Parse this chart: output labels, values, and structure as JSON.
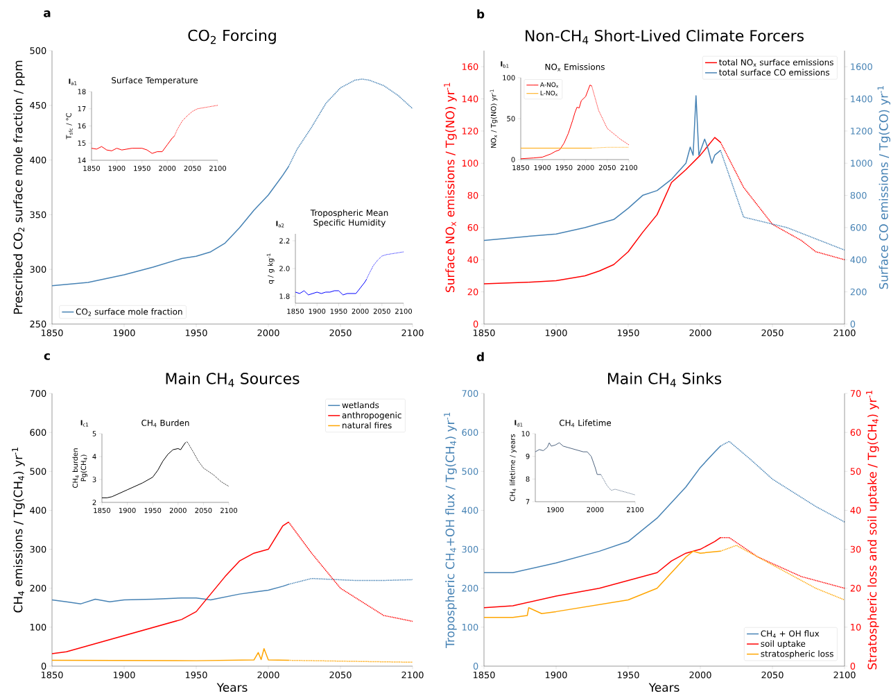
{
  "chart_data": [
    {
      "type": "line",
      "title": "CO$_{2}$ Forcing",
      "ylabel": "Prescribed CO$_{2}$ surface mole fraction / ppm",
      "xlim": [
        1850,
        2100
      ],
      "ylim": [
        250,
        500
      ],
      "xticks": [
        1850,
        1900,
        1950,
        2000,
        2050,
        2100
      ],
      "yticks": [
        250,
        300,
        350,
        400,
        450,
        500
      ],
      "legend": "bottom left",
      "annotations": [
        "**a**"
      ],
      "series": [
        {
          "name": "CO$_{2}$ surface mole fraction",
          "color": "#4682b4",
          "line_style": "solid",
          "x": [
            1850,
            1875,
            1900,
            1920,
            1930,
            1940,
            1950,
            1960,
            1970,
            1980,
            1990,
            2000,
            2010,
            2014
          ],
          "values": [
            285,
            288,
            295,
            302,
            306,
            310,
            312,
            316,
            324,
            338,
            354,
            368,
            386,
            394
          ]
        },
        {
          "color": "#4682b4",
          "line_style": "dotted",
          "x": [
            2014,
            2020,
            2030,
            2040,
            2050,
            2060,
            2065,
            2070,
            2080,
            2090,
            2100
          ],
          "values": [
            394,
            410,
            430,
            452,
            466,
            473,
            474,
            473,
            468,
            459,
            447
          ]
        }
      ]
    },
    {
      "type": "line",
      "title": "Surface Temperature",
      "ylabel": "T$_{sfc}$ / °C",
      "xlim": [
        1850,
        2100
      ],
      "ylim": [
        14,
        18
      ],
      "xticks": [
        1850,
        1900,
        1950,
        2000,
        2050,
        2100
      ],
      "yticks": [
        14,
        15,
        16,
        17,
        18
      ],
      "annotations": [
        "**I**$_{a1}$"
      ],
      "series": [
        {
          "color": "#ff0000",
          "line_style": "solid",
          "x": [
            1850,
            1860,
            1870,
            1880,
            1890,
            1900,
            1910,
            1920,
            1930,
            1940,
            1950,
            1960,
            1970,
            1980,
            1990,
            2000,
            2010,
            2014
          ],
          "values": [
            14.7,
            14.65,
            14.8,
            14.6,
            14.55,
            14.7,
            14.6,
            14.65,
            14.7,
            14.7,
            14.7,
            14.6,
            14.4,
            14.5,
            14.5,
            14.9,
            15.3,
            15.4
          ]
        },
        {
          "color": "#ff0000",
          "line_style": "dotted",
          "x": [
            2014,
            2020,
            2030,
            2040,
            2050,
            2060,
            2080,
            2100
          ],
          "values": [
            15.4,
            15.8,
            16.3,
            16.6,
            16.85,
            17.0,
            17.1,
            17.2
          ]
        }
      ]
    },
    {
      "type": "line",
      "title": "Tropospheric Mean Specific Humidity",
      "ylabel": "q / g kg$^{-1}$",
      "xlim": [
        1850,
        2100
      ],
      "ylim": [
        1.75,
        2.25
      ],
      "xticks": [
        1850,
        1900,
        1950,
        2000,
        2050,
        2100
      ],
      "yticks": [
        {
          "value": 1.8,
          "label": "1.8"
        },
        {
          "value": 2.0,
          "label": "2.0"
        },
        {
          "value": 2.2,
          "label": "2.2"
        }
      ],
      "annotations": [
        "**I**$_{a2}$"
      ],
      "series": [
        {
          "color": "#0000ff",
          "line_style": "solid",
          "x": [
            1850,
            1860,
            1870,
            1880,
            1890,
            1900,
            1910,
            1920,
            1930,
            1940,
            1950,
            1960,
            1970,
            1980,
            1990,
            2000,
            2010,
            2014
          ],
          "values": [
            1.83,
            1.82,
            1.84,
            1.81,
            1.82,
            1.83,
            1.82,
            1.83,
            1.83,
            1.84,
            1.84,
            1.81,
            1.82,
            1.82,
            1.82,
            1.86,
            1.9,
            1.92
          ]
        },
        {
          "color": "#0000ff",
          "line_style": "dotted",
          "x": [
            2014,
            2020,
            2030,
            2040,
            2050,
            2060,
            2080,
            2100
          ],
          "values": [
            1.92,
            1.96,
            2.02,
            2.06,
            2.09,
            2.1,
            2.11,
            2.12
          ]
        }
      ]
    },
    {
      "type": "line",
      "title": "Non-CH$_{4}$ Short-Lived Climate Forcers",
      "ylabel": "Surface NO$_{x}$ emissions / Tg(NO) yr$^{-1}$",
      "y2label": "Surface CO emissions / Tg(CO) yr$^{-1}$",
      "xlim": [
        1850,
        2100
      ],
      "ylim": [
        0,
        170
      ],
      "y2lim": [
        0,
        1700
      ],
      "xticks": [
        1850,
        1900,
        1950,
        2000,
        2050,
        2100
      ],
      "yticks": [
        0,
        20,
        40,
        60,
        80,
        100,
        120,
        140,
        160
      ],
      "y2ticks": [
        0,
        200,
        400,
        600,
        800,
        1000,
        1200,
        1400,
        1600
      ],
      "legend": "top right",
      "annotations": [
        "**b**"
      ],
      "series": [
        {
          "name": "total NO$_{x}$ surface emissions",
          "color": "#ff0000",
          "line_style": "solid",
          "x": [
            1850,
            1880,
            1900,
            1920,
            1930,
            1940,
            1950,
            1960,
            1970,
            1980,
            1990,
            2000,
            2010,
            2014
          ],
          "values": [
            25,
            26,
            27,
            30,
            33,
            37,
            45,
            57,
            68,
            88,
            96,
            105,
            116,
            113
          ]
        },
        {
          "color": "#ff0000",
          "line_style": "dotted",
          "x": [
            2014,
            2030,
            2050,
            2070,
            2080,
            2100
          ],
          "values": [
            113,
            85,
            62,
            52,
            45,
            40
          ]
        },
        {
          "name": "total surface CO emissions",
          "color": "#4682b4",
          "line_style": "solid",
          "axis": "y2",
          "x": [
            1850,
            1880,
            1900,
            1920,
            1940,
            1950,
            1960,
            1970,
            1980,
            1990,
            1993,
            1995,
            1997,
            1999,
            2003,
            2005,
            2008,
            2010,
            2014
          ],
          "values": [
            520,
            545,
            560,
            600,
            650,
            720,
            800,
            830,
            900,
            1000,
            1100,
            1050,
            1420,
            1050,
            1150,
            1100,
            1000,
            1050,
            1080
          ]
        },
        {
          "color": "#4682b4",
          "line_style": "dotted",
          "axis": "y2",
          "x": [
            2014,
            2030,
            2060,
            2100
          ],
          "values": [
            1080,
            665,
            600,
            460
          ]
        }
      ]
    },
    {
      "type": "line",
      "title": "NO$_{x}$ Emissions",
      "ylabel": "NO$_{x}$ / Tg(NO) yr$^{-1}$",
      "xlim": [
        1850,
        2100
      ],
      "ylim": [
        0,
        100
      ],
      "xticks": [
        1850,
        1900,
        1950,
        2000,
        2050,
        2100
      ],
      "yticks": [
        0,
        50,
        100
      ],
      "legend": "top left",
      "annotations": [
        "**I**$_{b1}$"
      ],
      "series": [
        {
          "name": "A-NO$_{x}$",
          "color": "#ff0000",
          "line_style": "solid",
          "x": [
            1850,
            1880,
            1900,
            1920,
            1930,
            1940,
            1950,
            1960,
            1970,
            1975,
            1980,
            1985,
            1990,
            2000,
            2005,
            2010,
            2014
          ],
          "values": [
            1,
            2,
            3,
            7,
            10,
            12,
            20,
            32,
            48,
            57,
            64,
            63,
            72,
            77,
            84,
            91,
            90
          ]
        },
        {
          "color": "#ff0000",
          "line_style": "dotted",
          "x": [
            2014,
            2030,
            2050,
            2080,
            2100
          ],
          "values": [
            90,
            60,
            38,
            25,
            18
          ]
        },
        {
          "name": "L-NO$_{x}$",
          "color": "#ffa500",
          "line_style": "solid",
          "x": [
            1850,
            1950,
            2014
          ],
          "values": [
            14,
            14,
            14
          ]
        },
        {
          "color": "#ffa500",
          "line_style": "dotted",
          "x": [
            2014,
            2050,
            2100
          ],
          "values": [
            14,
            15,
            15
          ]
        }
      ]
    },
    {
      "type": "line",
      "title": "Main CH$_{4}$ Sources",
      "ylabel": "CH$_{4}$ emissions / Tg(CH$_{4}$) yr$^{-1}$",
      "xlabel": "Years",
      "xlim": [
        1850,
        2100
      ],
      "ylim": [
        0,
        700
      ],
      "xticks": [
        1850,
        1900,
        1950,
        2000,
        2050,
        2100
      ],
      "yticks": [
        0,
        100,
        200,
        300,
        400,
        500,
        600,
        700
      ],
      "legend": "top right",
      "annotations": [
        "**c**"
      ],
      "series": [
        {
          "name": "wetlands",
          "color": "#4682b4",
          "line_style": "solid",
          "x": [
            1850,
            1860,
            1870,
            1880,
            1890,
            1900,
            1920,
            1940,
            1950,
            1960,
            1980,
            1990,
            2000,
            2010,
            2014
          ],
          "values": [
            170,
            165,
            160,
            172,
            165,
            170,
            172,
            175,
            175,
            170,
            185,
            190,
            195,
            205,
            210
          ]
        },
        {
          "color": "#4682b4",
          "line_style": "dotted",
          "x": [
            2014,
            2030,
            2060,
            2080,
            2100
          ],
          "values": [
            210,
            225,
            220,
            220,
            222
          ]
        },
        {
          "name": "anthropogenic",
          "color": "#ff0000",
          "line_style": "solid",
          "x": [
            1850,
            1860,
            1940,
            1950,
            1970,
            1980,
            1990,
            2000,
            2010,
            2014
          ],
          "values": [
            32,
            37,
            120,
            140,
            230,
            270,
            290,
            300,
            360,
            370
          ]
        },
        {
          "color": "#ff0000",
          "line_style": "dotted",
          "x": [
            2014,
            2030,
            2050,
            2080,
            2100
          ],
          "values": [
            370,
            290,
            200,
            130,
            115
          ]
        },
        {
          "name": "natural fires",
          "color": "#ffa500",
          "line_style": "solid",
          "x": [
            1850,
            1950,
            1990,
            1993,
            1995,
            1997,
            2000,
            2014
          ],
          "values": [
            15,
            14,
            16,
            35,
            17,
            45,
            16,
            15
          ]
        },
        {
          "color": "#ffa500",
          "line_style": "dotted",
          "x": [
            2014,
            2100
          ],
          "values": [
            15,
            10
          ]
        }
      ]
    },
    {
      "type": "line",
      "title": "CH$_{4}$ Burden",
      "ylabel": "CH$_{4}$ burden Pg(CH$_{4}$)",
      "xlim": [
        1850,
        2100
      ],
      "ylim": [
        2,
        5
      ],
      "xticks": [
        1850,
        1900,
        1950,
        2000,
        2050,
        2100
      ],
      "yticks": [
        2,
        3,
        4,
        5
      ],
      "annotations": [
        "**I**$_{c1}$"
      ],
      "series": [
        {
          "color": "#000000",
          "line_style": "solid",
          "x": [
            1850,
            1860,
            1870,
            1880,
            1900,
            1930,
            1950,
            1960,
            1970,
            1980,
            1990,
            2000,
            2005,
            2014
          ],
          "values": [
            2.2,
            2.2,
            2.25,
            2.35,
            2.55,
            2.85,
            3.1,
            3.4,
            3.8,
            4.1,
            4.3,
            4.35,
            4.3,
            4.6
          ]
        },
        {
          "color": "#000000",
          "line_style": "dotted",
          "x": [
            2014,
            2018,
            2030,
            2040,
            2050,
            2070,
            2085,
            2100
          ],
          "values": [
            4.6,
            4.65,
            4.2,
            3.8,
            3.5,
            3.2,
            2.9,
            2.7
          ]
        }
      ]
    },
    {
      "type": "line",
      "title": "Main CH$_{4}$ Sinks",
      "ylabel": "Tropospheric CH$_{4}$+OH flux / Tg(CH$_{4}$) yr$^{-1}$",
      "y2label": "Stratospheric loss and soil uptake / Tg(CH$_{4}$) yr$^{-1}$",
      "xlabel": "Years",
      "xlim": [
        1850,
        2100
      ],
      "ylim": [
        0,
        700
      ],
      "y2lim": [
        0,
        70
      ],
      "xticks": [
        1850,
        1900,
        1950,
        2000,
        2050,
        2100
      ],
      "yticks": [
        0,
        100,
        200,
        300,
        400,
        500,
        600,
        700
      ],
      "y2ticks": [
        0,
        10,
        20,
        30,
        40,
        50,
        60,
        70
      ],
      "legend": "bottom right",
      "annotations": [
        "**d**"
      ],
      "series": [
        {
          "name": "CH$_{4}$ + OH flux",
          "color": "#4682b4",
          "line_style": "solid",
          "x": [
            1850,
            1870,
            1900,
            1930,
            1950,
            1970,
            1980,
            1990,
            2000,
            2010,
            2014
          ],
          "values": [
            240,
            240,
            265,
            295,
            320,
            380,
            420,
            460,
            510,
            550,
            565
          ]
        },
        {
          "color": "#4682b4",
          "line_style": "dotted",
          "x": [
            2014,
            2020,
            2035,
            2050,
            2080,
            2100
          ],
          "values": [
            565,
            577,
            530,
            480,
            410,
            370
          ]
        },
        {
          "name": "soil uptake",
          "color": "#ff0000",
          "line_style": "solid",
          "axis": "y2",
          "x": [
            1850,
            1870,
            1900,
            1930,
            1950,
            1970,
            1980,
            1990,
            2000,
            2010,
            2014
          ],
          "values": [
            15,
            15.5,
            18,
            20,
            22,
            24,
            27,
            29,
            30,
            32,
            33
          ]
        },
        {
          "color": "#ff0000",
          "line_style": "dotted",
          "axis": "y2",
          "x": [
            2014,
            2020,
            2040,
            2070,
            2100
          ],
          "values": [
            33,
            33,
            28,
            23,
            20
          ]
        },
        {
          "name": "stratospheric loss",
          "color": "#ffa500",
          "line_style": "solid",
          "axis": "y2",
          "x": [
            1850,
            1870,
            1880,
            1881,
            1890,
            1900,
            1950,
            1970,
            1980,
            1990,
            1995,
            2000,
            2014
          ],
          "values": [
            12.5,
            12.5,
            13,
            15,
            13.5,
            14,
            17,
            20,
            24,
            28,
            29.5,
            29,
            29.5
          ]
        },
        {
          "color": "#ffa500",
          "line_style": "dotted",
          "axis": "y2",
          "x": [
            2014,
            2025,
            2050,
            2080,
            2100
          ],
          "values": [
            29.5,
            31,
            26,
            20,
            17
          ]
        }
      ]
    },
    {
      "type": "line",
      "title": "CH$_{4}$ Lifetime",
      "ylabel": "CH$_{4}$ lifetime / years",
      "xlim": [
        1850,
        2100
      ],
      "ylim": [
        7,
        10
      ],
      "xticks": [
        1900,
        2000,
        2100
      ],
      "yticks": [
        7,
        8,
        9,
        10
      ],
      "annotations": [
        "**I**$_{d1}$"
      ],
      "series": [
        {
          "color": "#4f6480",
          "line_style": "solid",
          "x": [
            1850,
            1860,
            1870,
            1880,
            1885,
            1890,
            1900,
            1910,
            1920,
            1930,
            1950,
            1970,
            1980,
            1990,
            2000,
            2005,
            2010,
            2014
          ],
          "values": [
            9.2,
            9.3,
            9.25,
            9.4,
            9.6,
            9.45,
            9.5,
            9.6,
            9.45,
            9.4,
            9.3,
            9.2,
            9.2,
            9.0,
            8.5,
            8.2,
            8.2,
            8.2
          ]
        },
        {
          "color": "#4f6480",
          "line_style": "dotted",
          "x": [
            2014,
            2030,
            2040,
            2050,
            2070,
            2100
          ],
          "values": [
            8.2,
            7.7,
            7.5,
            7.55,
            7.45,
            7.3
          ]
        }
      ]
    }
  ]
}
